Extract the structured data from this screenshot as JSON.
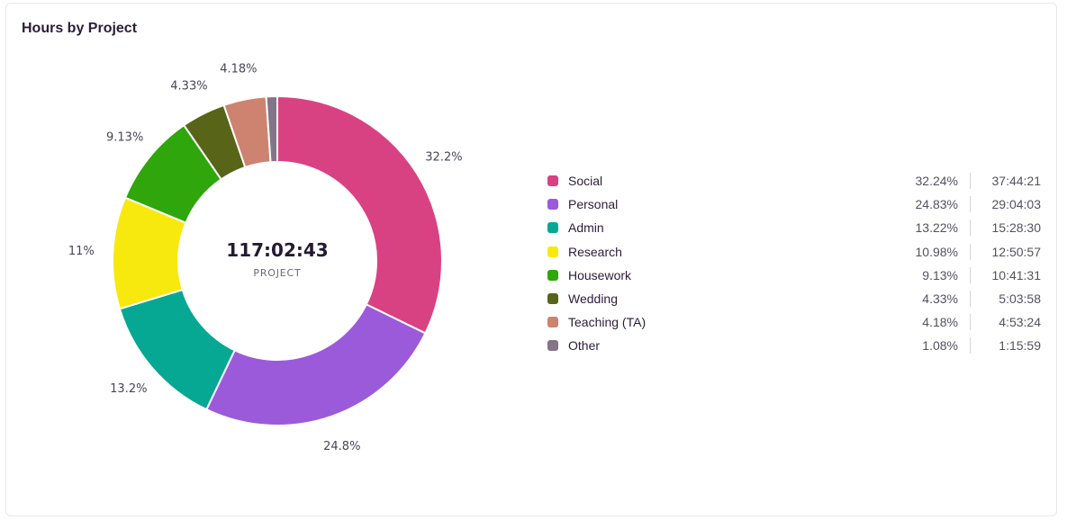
{
  "card": {
    "title": "Hours by Project"
  },
  "center": {
    "total": "117:02:43",
    "label": "PROJECT"
  },
  "chart_data": {
    "type": "pie",
    "title": "Hours by Project",
    "donut": true,
    "categories": [
      "Social",
      "Personal",
      "Admin",
      "Research",
      "Housework",
      "Wedding",
      "Teaching (TA)",
      "Other"
    ],
    "values": [
      32.24,
      24.83,
      13.22,
      10.98,
      9.13,
      4.33,
      4.18,
      1.08
    ],
    "slice_labels": [
      "32.2%",
      "24.8%",
      "13.2%",
      "11%",
      "9.13%",
      "4.33%",
      "4.18%",
      ""
    ],
    "colors": [
      "#d94282",
      "#9b5ada",
      "#06a893",
      "#f7e90e",
      "#2ea60c",
      "#586417",
      "#cd836f",
      "#857387"
    ],
    "legend_position": "right"
  },
  "legend": {
    "items": [
      {
        "name": "Social",
        "pct": "32.24%",
        "time": "37:44:21",
        "color": "#d94282"
      },
      {
        "name": "Personal",
        "pct": "24.83%",
        "time": "29:04:03",
        "color": "#9b5ada"
      },
      {
        "name": "Admin",
        "pct": "13.22%",
        "time": "15:28:30",
        "color": "#06a893"
      },
      {
        "name": "Research",
        "pct": "10.98%",
        "time": "12:50:57",
        "color": "#f7e90e"
      },
      {
        "name": "Housework",
        "pct": "9.13%",
        "time": "10:41:31",
        "color": "#2ea60c"
      },
      {
        "name": "Wedding",
        "pct": "4.33%",
        "time": "5:03:58",
        "color": "#586417"
      },
      {
        "name": "Teaching (TA)",
        "pct": "4.18%",
        "time": "4:53:24",
        "color": "#cd836f"
      },
      {
        "name": "Other",
        "pct": "1.08%",
        "time": "1:15:59",
        "color": "#857387"
      }
    ]
  }
}
